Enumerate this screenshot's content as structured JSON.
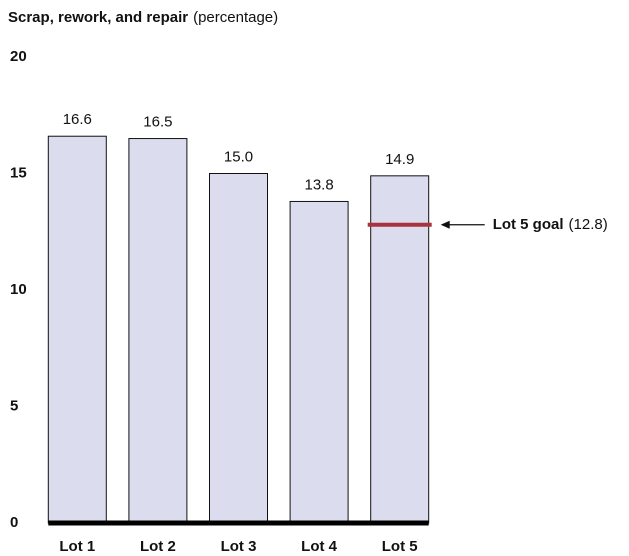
{
  "chart_data": {
    "type": "bar",
    "title": "Scrap, rework, and repair",
    "subtitle": "(percentage)",
    "categories": [
      "Lot 1",
      "Lot 2",
      "Lot 3",
      "Lot 4",
      "Lot 5"
    ],
    "values": [
      16.6,
      16.5,
      15.0,
      13.8,
      14.9
    ],
    "value_labels": [
      "16.6",
      "16.5",
      "15.0",
      "13.8",
      "14.9"
    ],
    "color": "#dcdcef",
    "ylim": [
      0,
      20
    ],
    "yticks": [
      0,
      5,
      10,
      15,
      20
    ],
    "grid": false,
    "annotation": {
      "label": "Lot 5 goal",
      "value": 12.8,
      "value_label": "(12.8)",
      "category_index": 4,
      "color": "#a8323e"
    }
  }
}
